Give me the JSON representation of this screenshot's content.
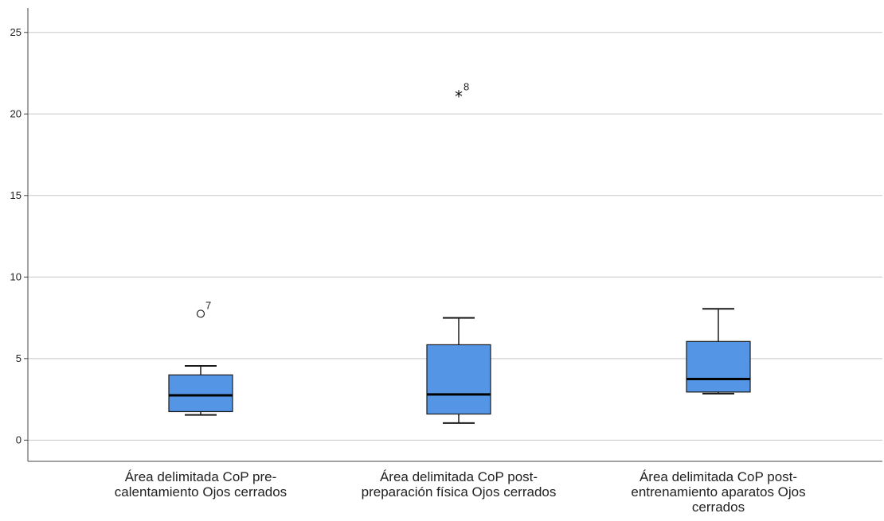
{
  "chart_data": {
    "type": "boxplot",
    "ylim": [
      -1.3,
      26.5
    ],
    "yticks": [
      0,
      5,
      10,
      15,
      20,
      25
    ],
    "grid": "horizontal",
    "box_color": "#5496E5",
    "outline_color": "#1a1a1a",
    "grid_color": "#c8c8c8",
    "categories": [
      {
        "label_lines": [
          "Área delimitada CoP pre-",
          "calentamiento Ojos cerrados"
        ],
        "whisker_low": 1.55,
        "q1": 1.75,
        "median": 2.75,
        "q3": 4.0,
        "whisker_high": 4.55
      },
      {
        "label_lines": [
          "Área delimitada CoP post-",
          "preparación física Ojos cerrados"
        ],
        "whisker_low": 1.05,
        "q1": 1.6,
        "median": 2.8,
        "q3": 5.85,
        "whisker_high": 7.5
      },
      {
        "label_lines": [
          "Área delimitada CoP post-",
          "entrenamiento aparatos Ojos",
          "cerrados"
        ],
        "whisker_low": 2.85,
        "q1": 2.95,
        "median": 3.75,
        "q3": 6.05,
        "whisker_high": 8.05
      }
    ],
    "outliers": [
      {
        "category": 0,
        "value": 7.75,
        "label": "7",
        "marker": "circle"
      },
      {
        "category": 1,
        "value": 21.15,
        "label": "8",
        "marker": "star"
      }
    ]
  }
}
